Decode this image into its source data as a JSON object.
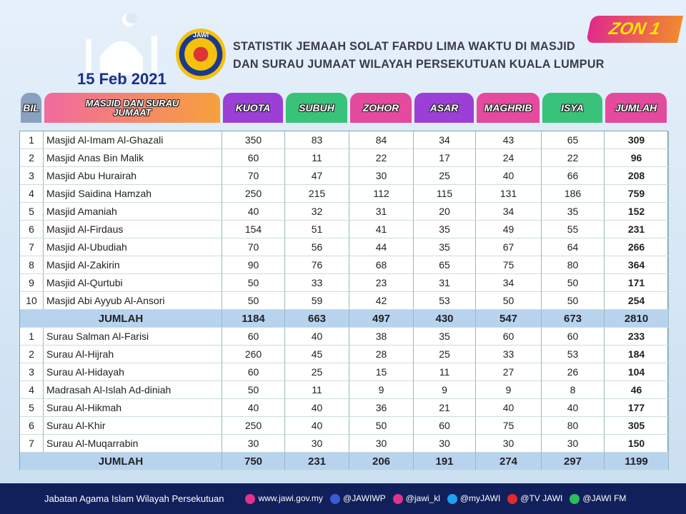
{
  "header": {
    "logo_text": "JAWI",
    "date": "15 Feb 2021",
    "title_lines": [
      "STATISTIK JEMAAH SOLAT FARDU LIMA WAKTU DI MASJID",
      "DAN SURAU JUMAAT WILAYAH PERSEKUTUAN KUALA LUMPUR"
    ],
    "zone": "ZON 1"
  },
  "table": {
    "columns": [
      "BIL",
      "MASJID DAN SURAU JUMAAT",
      "KUOTA",
      "SUBUH",
      "ZOHOR",
      "ASAR",
      "MAGHRIB",
      "ISYA",
      "JUMLAH"
    ],
    "sections": [
      {
        "rows": [
          [
            1,
            "Masjid Al-Imam Al-Ghazali",
            350,
            83,
            84,
            34,
            43,
            65,
            309
          ],
          [
            2,
            "Masjid Anas Bin Malik",
            60,
            11,
            22,
            17,
            24,
            22,
            96
          ],
          [
            3,
            "Masjid Abu Hurairah",
            70,
            47,
            30,
            25,
            40,
            66,
            208
          ],
          [
            4,
            "Masjid Saidina Hamzah",
            250,
            215,
            112,
            115,
            131,
            186,
            759
          ],
          [
            5,
            "Masjid Amaniah",
            40,
            32,
            31,
            20,
            34,
            35,
            152
          ],
          [
            6,
            "Masjid Al-Firdaus",
            154,
            51,
            41,
            35,
            49,
            55,
            231
          ],
          [
            7,
            "Masjid Al-Ubudiah",
            70,
            56,
            44,
            35,
            67,
            64,
            266
          ],
          [
            8,
            "Masjid Al-Zakirin",
            90,
            76,
            68,
            65,
            75,
            80,
            364
          ],
          [
            9,
            "Masjid Al-Qurtubi",
            50,
            33,
            23,
            31,
            34,
            50,
            171
          ],
          [
            10,
            "Masjid Abi Ayyub Al-Ansori",
            50,
            59,
            42,
            53,
            50,
            50,
            254
          ]
        ],
        "total": {
          "label": "JUMLAH",
          "values": [
            1184,
            663,
            497,
            430,
            547,
            673,
            2810
          ]
        }
      },
      {
        "rows": [
          [
            1,
            "Surau Salman Al-Farisi",
            60,
            40,
            38,
            35,
            60,
            60,
            233
          ],
          [
            2,
            "Surau Al-Hijrah",
            260,
            45,
            28,
            25,
            33,
            53,
            184
          ],
          [
            3,
            "Surau Al-Hidayah",
            60,
            25,
            15,
            11,
            27,
            26,
            104
          ],
          [
            4,
            "Madrasah Al-Islah Ad-diniah",
            50,
            11,
            9,
            9,
            9,
            8,
            46
          ],
          [
            5,
            "Surau Al-Hikmah",
            40,
            40,
            36,
            21,
            40,
            40,
            177
          ],
          [
            6,
            "Surau Al-Khir",
            250,
            40,
            50,
            60,
            75,
            80,
            305
          ],
          [
            7,
            "Surau Al-Muqarrabin",
            30,
            30,
            30,
            30,
            30,
            30,
            150
          ]
        ],
        "total": {
          "label": "JUMLAH",
          "values": [
            750,
            231,
            206,
            191,
            274,
            297,
            1199
          ]
        }
      }
    ]
  },
  "footer": {
    "organization": "Jabatan Agama Islam Wilayah Persekutuan",
    "links": [
      "www.jawi.gov.my",
      "@JAWIWP",
      "@jawi_kl",
      "@myJAWI",
      "@TV JAWI",
      "@JAWI FM"
    ]
  }
}
